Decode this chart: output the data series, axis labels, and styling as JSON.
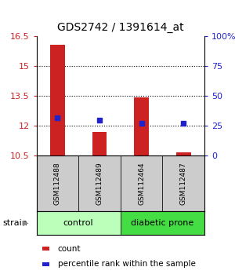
{
  "title": "GDS2742 / 1391614_at",
  "samples": [
    "GSM112488",
    "GSM112489",
    "GSM112464",
    "GSM112487"
  ],
  "count_values": [
    16.08,
    11.68,
    13.42,
    10.68
  ],
  "percentile_values": [
    32,
    30,
    27,
    27
  ],
  "left_ylim": [
    10.5,
    16.5
  ],
  "right_ylim": [
    0,
    100
  ],
  "left_yticks": [
    10.5,
    12,
    13.5,
    15,
    16.5
  ],
  "right_yticks": [
    0,
    25,
    50,
    75,
    100
  ],
  "right_ytick_labels": [
    "0",
    "25",
    "50",
    "75",
    "100%"
  ],
  "left_ytick_labels": [
    "10.5",
    "12",
    "13.5",
    "15",
    "16.5"
  ],
  "bar_color": "#cc2222",
  "dot_color": "#2222cc",
  "groups": [
    {
      "label": "control",
      "indices": [
        0,
        1
      ],
      "color": "#bbffbb"
    },
    {
      "label": "diabetic prone",
      "indices": [
        2,
        3
      ],
      "color": "#44dd44"
    }
  ],
  "strain_label": "strain",
  "legend_items": [
    {
      "color": "#cc2222",
      "label": "count"
    },
    {
      "color": "#2222cc",
      "label": "percentile rank within the sample"
    }
  ],
  "sample_box_color": "#cccccc",
  "bar_width": 0.35,
  "bar_bottom": 10.5,
  "left_label_color": "#cc2222",
  "right_label_color": "#2222cc"
}
